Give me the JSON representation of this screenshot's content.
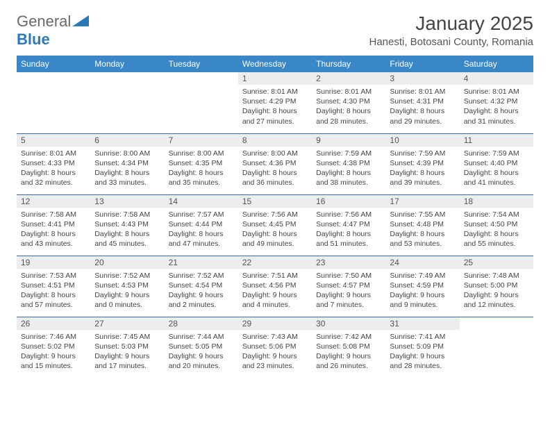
{
  "logo": {
    "text1": "General",
    "text2": "Blue"
  },
  "title": "January 2025",
  "location": "Hanesti, Botosani County, Romania",
  "colors": {
    "header_bg": "#3a87c7",
    "header_text": "#ffffff",
    "daynum_bg": "#ededed",
    "row_border": "#3a6a9a",
    "logo_gray": "#6a6a6a",
    "logo_blue": "#2a7ab8"
  },
  "weekdays": [
    "Sunday",
    "Monday",
    "Tuesday",
    "Wednesday",
    "Thursday",
    "Friday",
    "Saturday"
  ],
  "weeks": [
    [
      {
        "day": "",
        "sunrise": "",
        "sunset": "",
        "daylight1": "",
        "daylight2": ""
      },
      {
        "day": "",
        "sunrise": "",
        "sunset": "",
        "daylight1": "",
        "daylight2": ""
      },
      {
        "day": "",
        "sunrise": "",
        "sunset": "",
        "daylight1": "",
        "daylight2": ""
      },
      {
        "day": "1",
        "sunrise": "Sunrise: 8:01 AM",
        "sunset": "Sunset: 4:29 PM",
        "daylight1": "Daylight: 8 hours",
        "daylight2": "and 27 minutes."
      },
      {
        "day": "2",
        "sunrise": "Sunrise: 8:01 AM",
        "sunset": "Sunset: 4:30 PM",
        "daylight1": "Daylight: 8 hours",
        "daylight2": "and 28 minutes."
      },
      {
        "day": "3",
        "sunrise": "Sunrise: 8:01 AM",
        "sunset": "Sunset: 4:31 PM",
        "daylight1": "Daylight: 8 hours",
        "daylight2": "and 29 minutes."
      },
      {
        "day": "4",
        "sunrise": "Sunrise: 8:01 AM",
        "sunset": "Sunset: 4:32 PM",
        "daylight1": "Daylight: 8 hours",
        "daylight2": "and 31 minutes."
      }
    ],
    [
      {
        "day": "5",
        "sunrise": "Sunrise: 8:01 AM",
        "sunset": "Sunset: 4:33 PM",
        "daylight1": "Daylight: 8 hours",
        "daylight2": "and 32 minutes."
      },
      {
        "day": "6",
        "sunrise": "Sunrise: 8:00 AM",
        "sunset": "Sunset: 4:34 PM",
        "daylight1": "Daylight: 8 hours",
        "daylight2": "and 33 minutes."
      },
      {
        "day": "7",
        "sunrise": "Sunrise: 8:00 AM",
        "sunset": "Sunset: 4:35 PM",
        "daylight1": "Daylight: 8 hours",
        "daylight2": "and 35 minutes."
      },
      {
        "day": "8",
        "sunrise": "Sunrise: 8:00 AM",
        "sunset": "Sunset: 4:36 PM",
        "daylight1": "Daylight: 8 hours",
        "daylight2": "and 36 minutes."
      },
      {
        "day": "9",
        "sunrise": "Sunrise: 7:59 AM",
        "sunset": "Sunset: 4:38 PM",
        "daylight1": "Daylight: 8 hours",
        "daylight2": "and 38 minutes."
      },
      {
        "day": "10",
        "sunrise": "Sunrise: 7:59 AM",
        "sunset": "Sunset: 4:39 PM",
        "daylight1": "Daylight: 8 hours",
        "daylight2": "and 39 minutes."
      },
      {
        "day": "11",
        "sunrise": "Sunrise: 7:59 AM",
        "sunset": "Sunset: 4:40 PM",
        "daylight1": "Daylight: 8 hours",
        "daylight2": "and 41 minutes."
      }
    ],
    [
      {
        "day": "12",
        "sunrise": "Sunrise: 7:58 AM",
        "sunset": "Sunset: 4:41 PM",
        "daylight1": "Daylight: 8 hours",
        "daylight2": "and 43 minutes."
      },
      {
        "day": "13",
        "sunrise": "Sunrise: 7:58 AM",
        "sunset": "Sunset: 4:43 PM",
        "daylight1": "Daylight: 8 hours",
        "daylight2": "and 45 minutes."
      },
      {
        "day": "14",
        "sunrise": "Sunrise: 7:57 AM",
        "sunset": "Sunset: 4:44 PM",
        "daylight1": "Daylight: 8 hours",
        "daylight2": "and 47 minutes."
      },
      {
        "day": "15",
        "sunrise": "Sunrise: 7:56 AM",
        "sunset": "Sunset: 4:45 PM",
        "daylight1": "Daylight: 8 hours",
        "daylight2": "and 49 minutes."
      },
      {
        "day": "16",
        "sunrise": "Sunrise: 7:56 AM",
        "sunset": "Sunset: 4:47 PM",
        "daylight1": "Daylight: 8 hours",
        "daylight2": "and 51 minutes."
      },
      {
        "day": "17",
        "sunrise": "Sunrise: 7:55 AM",
        "sunset": "Sunset: 4:48 PM",
        "daylight1": "Daylight: 8 hours",
        "daylight2": "and 53 minutes."
      },
      {
        "day": "18",
        "sunrise": "Sunrise: 7:54 AM",
        "sunset": "Sunset: 4:50 PM",
        "daylight1": "Daylight: 8 hours",
        "daylight2": "and 55 minutes."
      }
    ],
    [
      {
        "day": "19",
        "sunrise": "Sunrise: 7:53 AM",
        "sunset": "Sunset: 4:51 PM",
        "daylight1": "Daylight: 8 hours",
        "daylight2": "and 57 minutes."
      },
      {
        "day": "20",
        "sunrise": "Sunrise: 7:52 AM",
        "sunset": "Sunset: 4:53 PM",
        "daylight1": "Daylight: 9 hours",
        "daylight2": "and 0 minutes."
      },
      {
        "day": "21",
        "sunrise": "Sunrise: 7:52 AM",
        "sunset": "Sunset: 4:54 PM",
        "daylight1": "Daylight: 9 hours",
        "daylight2": "and 2 minutes."
      },
      {
        "day": "22",
        "sunrise": "Sunrise: 7:51 AM",
        "sunset": "Sunset: 4:56 PM",
        "daylight1": "Daylight: 9 hours",
        "daylight2": "and 4 minutes."
      },
      {
        "day": "23",
        "sunrise": "Sunrise: 7:50 AM",
        "sunset": "Sunset: 4:57 PM",
        "daylight1": "Daylight: 9 hours",
        "daylight2": "and 7 minutes."
      },
      {
        "day": "24",
        "sunrise": "Sunrise: 7:49 AM",
        "sunset": "Sunset: 4:59 PM",
        "daylight1": "Daylight: 9 hours",
        "daylight2": "and 9 minutes."
      },
      {
        "day": "25",
        "sunrise": "Sunrise: 7:48 AM",
        "sunset": "Sunset: 5:00 PM",
        "daylight1": "Daylight: 9 hours",
        "daylight2": "and 12 minutes."
      }
    ],
    [
      {
        "day": "26",
        "sunrise": "Sunrise: 7:46 AM",
        "sunset": "Sunset: 5:02 PM",
        "daylight1": "Daylight: 9 hours",
        "daylight2": "and 15 minutes."
      },
      {
        "day": "27",
        "sunrise": "Sunrise: 7:45 AM",
        "sunset": "Sunset: 5:03 PM",
        "daylight1": "Daylight: 9 hours",
        "daylight2": "and 17 minutes."
      },
      {
        "day": "28",
        "sunrise": "Sunrise: 7:44 AM",
        "sunset": "Sunset: 5:05 PM",
        "daylight1": "Daylight: 9 hours",
        "daylight2": "and 20 minutes."
      },
      {
        "day": "29",
        "sunrise": "Sunrise: 7:43 AM",
        "sunset": "Sunset: 5:06 PM",
        "daylight1": "Daylight: 9 hours",
        "daylight2": "and 23 minutes."
      },
      {
        "day": "30",
        "sunrise": "Sunrise: 7:42 AM",
        "sunset": "Sunset: 5:08 PM",
        "daylight1": "Daylight: 9 hours",
        "daylight2": "and 26 minutes."
      },
      {
        "day": "31",
        "sunrise": "Sunrise: 7:41 AM",
        "sunset": "Sunset: 5:09 PM",
        "daylight1": "Daylight: 9 hours",
        "daylight2": "and 28 minutes."
      },
      {
        "day": "",
        "sunrise": "",
        "sunset": "",
        "daylight1": "",
        "daylight2": ""
      }
    ]
  ]
}
